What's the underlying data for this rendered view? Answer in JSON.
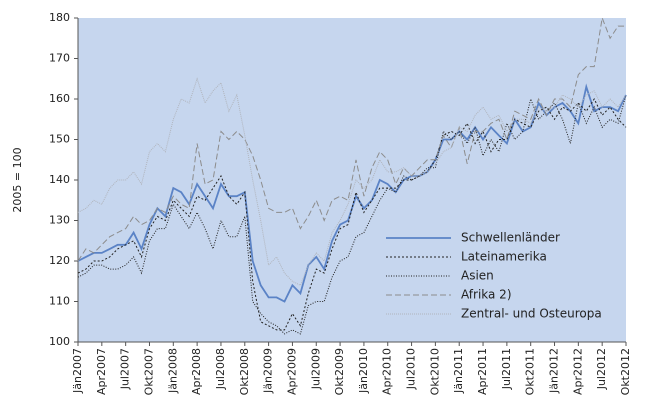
{
  "chart_data": {
    "type": "line",
    "ylabel": "2005 = 100",
    "categories": [
      "Jän2007",
      null,
      null,
      "Apr2007",
      null,
      null,
      "Jul2007",
      null,
      null,
      "Okt2007",
      null,
      null,
      "Jän2008",
      null,
      null,
      "Apr2008",
      null,
      null,
      "Jul2008",
      null,
      null,
      "Okt2008",
      null,
      null,
      "Jän2009",
      null,
      null,
      "Apr2009",
      null,
      null,
      "Jul2009",
      null,
      null,
      "Okt2009",
      null,
      null,
      "Jän2010",
      null,
      null,
      "Apr2010",
      null,
      null,
      "Jul2010",
      null,
      null,
      "Okt2010",
      null,
      null,
      "Jän2011",
      null,
      null,
      "Apr2011",
      null,
      null,
      "Jul2011",
      null,
      null,
      "Okt2011",
      null,
      null,
      "Jän2012",
      null,
      null,
      "Apr2012",
      null,
      null,
      "Jul2012",
      null,
      null,
      "Okt2012"
    ],
    "series": [
      {
        "name": "Schwellenländer",
        "color": "#5b83c6",
        "dash": "none",
        "width": 1.8,
        "values": [
          120,
          121,
          122,
          122,
          123,
          124,
          124,
          127,
          123,
          129,
          133,
          131,
          138,
          137,
          134,
          139,
          136,
          133,
          139,
          136,
          136,
          137,
          120,
          114,
          111,
          111,
          110,
          114,
          112,
          119,
          121,
          118,
          125,
          129,
          130,
          136,
          133,
          135,
          140,
          139,
          137,
          140,
          141,
          141,
          142,
          145,
          150,
          150,
          152,
          150,
          153,
          150,
          153,
          151,
          149,
          155,
          152,
          153,
          159,
          156,
          158,
          159,
          157,
          154,
          163,
          157,
          158,
          158,
          157,
          161
        ]
      },
      {
        "name": "Lateinamerika",
        "color": "#222222",
        "dash": "2 2",
        "width": 1,
        "values": [
          117,
          118,
          120,
          120,
          121,
          123,
          124,
          125,
          121,
          128,
          131,
          130,
          135,
          133,
          131,
          136,
          135,
          138,
          141,
          136,
          134,
          137,
          115,
          105,
          104,
          103,
          103,
          107,
          104,
          112,
          118,
          117,
          123,
          128,
          129,
          137,
          132,
          135,
          138,
          138,
          138,
          140,
          140,
          141,
          142,
          145,
          151,
          152,
          151,
          154,
          149,
          152,
          147,
          150,
          150,
          155,
          154,
          153,
          157,
          158,
          155,
          158,
          157,
          159,
          157,
          160,
          156,
          158,
          155,
          153
        ]
      },
      {
        "name": "Asien",
        "color": "#222222",
        "dash": "1 1.5",
        "width": 1,
        "values": [
          116,
          117,
          119,
          119,
          118,
          118,
          119,
          121,
          117,
          125,
          128,
          128,
          134,
          131,
          128,
          132,
          128,
          123,
          130,
          126,
          126,
          131,
          110,
          107,
          105,
          104,
          102,
          103,
          102,
          109,
          110,
          110,
          116,
          120,
          121,
          126,
          127,
          131,
          135,
          138,
          137,
          141,
          140,
          141,
          143,
          143,
          152,
          150,
          152,
          149,
          153,
          146,
          150,
          147,
          154,
          150,
          152,
          160,
          155,
          157,
          159,
          155,
          149,
          159,
          154,
          158,
          153,
          155,
          154,
          161
        ]
      },
      {
        "name": "Afrika 2)",
        "color": "#8c8c8c",
        "dash": "6 3",
        "width": 1,
        "values": [
          120,
          123,
          122,
          124,
          126,
          127,
          128,
          131,
          129,
          130,
          133,
          132,
          136,
          134,
          133,
          149,
          139,
          140,
          152,
          150,
          152,
          150,
          146,
          140,
          133,
          132,
          132,
          133,
          128,
          131,
          135,
          130,
          135,
          136,
          135,
          145,
          136,
          143,
          147,
          145,
          139,
          143,
          141,
          143,
          145,
          145,
          151,
          148,
          153,
          144,
          152,
          152,
          154,
          155,
          150,
          157,
          156,
          155,
          160,
          156,
          160,
          160,
          158,
          166,
          168,
          168,
          180,
          175,
          178,
          178
        ]
      },
      {
        "name": "Zentral- und Osteuropa",
        "color": "#b0b4bc",
        "dash": "1 1",
        "width": 1,
        "values": [
          132,
          133,
          135,
          134,
          138,
          140,
          140,
          142,
          139,
          147,
          149,
          147,
          155,
          160,
          159,
          165,
          159,
          162,
          164,
          157,
          161,
          151,
          140,
          130,
          119,
          121,
          117,
          115,
          114,
          119,
          122,
          120,
          127,
          130,
          134,
          140,
          138,
          140,
          145,
          142,
          142,
          143,
          141,
          141,
          142,
          144,
          147,
          148,
          153,
          152,
          156,
          158,
          155,
          156,
          152,
          155,
          155,
          154,
          158,
          157,
          158,
          161,
          160,
          158,
          161,
          162,
          158,
          160,
          158,
          161
        ]
      }
    ],
    "ylim": [
      100,
      180
    ],
    "yticks": [
      100,
      110,
      120,
      130,
      140,
      150,
      160,
      170,
      180
    ],
    "legend": "lower right",
    "background": "#c6d6ee"
  }
}
